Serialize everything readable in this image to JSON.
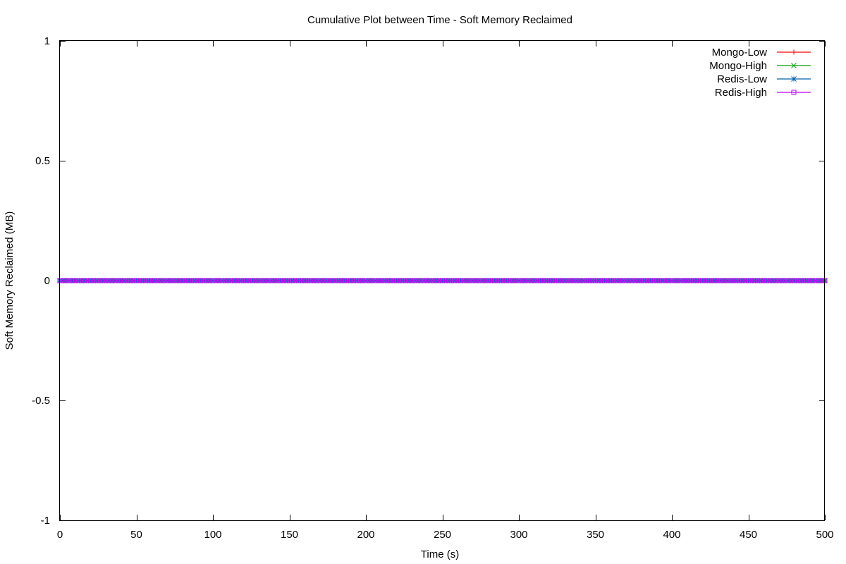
{
  "chart_data": {
    "type": "line",
    "title": "Cumulative Plot between Time - Soft Memory Reclaimed",
    "xlabel": "Time (s)",
    "ylabel": "Soft Memory Reclaimed (MB)",
    "xlim": [
      0,
      500
    ],
    "ylim": [
      -1,
      1
    ],
    "x_ticks": [
      0,
      50,
      100,
      150,
      200,
      250,
      300,
      350,
      400,
      450,
      500
    ],
    "y_ticks": [
      -1,
      -0.5,
      0,
      0.5,
      1
    ],
    "x_tick_labels": [
      "0",
      "50",
      "100",
      "150",
      "200",
      "250",
      "300",
      "350",
      "400",
      "450",
      "500"
    ],
    "y_tick_labels": [
      "-1",
      "-0.5",
      "0",
      "0.5",
      "1"
    ],
    "grid": false,
    "legend_position": "top-right",
    "series": [
      {
        "name": "Mongo-Low",
        "color": "#ff0000",
        "marker": "plus",
        "x_range": [
          0,
          500
        ],
        "x_step": 2,
        "constant_y": 0
      },
      {
        "name": "Mongo-High",
        "color": "#00a000",
        "marker": "cross",
        "x_range": [
          0,
          500
        ],
        "x_step": 2,
        "constant_y": 0
      },
      {
        "name": "Redis-Low",
        "color": "#0060ad",
        "marker": "star",
        "x_range": [
          0,
          500
        ],
        "x_step": 2,
        "constant_y": 0
      },
      {
        "name": "Redis-High",
        "color": "#c000ff",
        "marker": "square",
        "x_range": [
          0,
          500
        ],
        "x_step": 2,
        "constant_y": 0
      }
    ]
  }
}
